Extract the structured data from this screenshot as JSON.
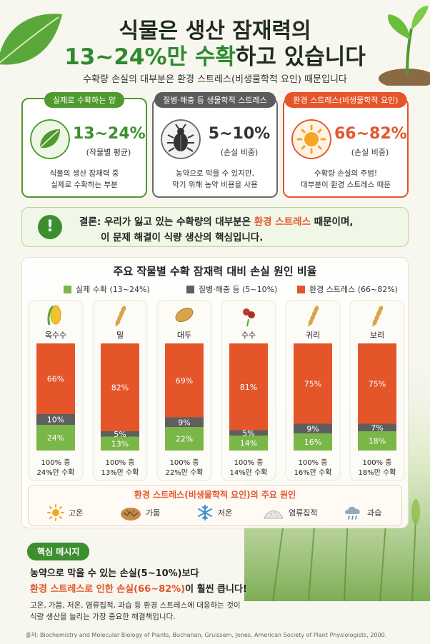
{
  "header": {
    "title_line1": "식물은 생산 잠재력의",
    "title_line2_highlight": "13~24%만 수확",
    "title_line2_rest": "하고 있습니다",
    "subtitle": "수확량 손실의 대부분은 환경 스트레스(비생물학적 요인) 때문입니다"
  },
  "cards": [
    {
      "tag": "실제로 수확하는 양",
      "value": "13~24%",
      "sub": "(작물별 평균)",
      "desc1": "식물의 생산 잠재력 중",
      "desc2": "실제로 수확하는 부분",
      "color": "#4f9a2e",
      "icon": "leaf-icon"
    },
    {
      "tag": "질병·해충 등 생물학적 스트레스",
      "value": "5~10%",
      "sub": "(손실 비중)",
      "desc1": "농약으로 막을 수 있지만,",
      "desc2": "막기 위해 농약 비용을 사용",
      "color": "#5b5b5b",
      "icon": "bug-icon"
    },
    {
      "tag": "환경 스트레스(비생물학적 요인)",
      "value": "66~82%",
      "sub": "(손실 비중)",
      "desc1": "수확량 손실의 주범!",
      "desc2": "대부분이 환경 스트레스 때문",
      "color": "#e4552a",
      "icon": "sun-icon"
    }
  ],
  "conclusion": {
    "prefix": "결론:",
    "l1_before": "우리가 잃고 있는 수확량의 대부분은 ",
    "l1_highlight": "환경 스트레스",
    "l1_after": " 때문이며,",
    "l2": "이 문제 해결이 식량 생산의 핵심입니다."
  },
  "chart_data": {
    "type": "bar",
    "stacked": true,
    "title": "주요 작물별 수확 잠재력 대비 손실 원인 비율",
    "categories": [
      "옥수수",
      "밀",
      "대두",
      "수수",
      "귀리",
      "보리"
    ],
    "series": [
      {
        "name": "실제 수확 (13~24%)",
        "values": [
          24,
          13,
          22,
          14,
          16,
          18
        ],
        "color": "#7ab648"
      },
      {
        "name": "질병·해충 등 (5~10%)",
        "values": [
          10,
          5,
          9,
          5,
          9,
          7
        ],
        "color": "#5f5f5f"
      },
      {
        "name": "환경 스트레스 (66~82%)",
        "values": [
          66,
          82,
          69,
          81,
          75,
          75
        ],
        "color": "#e4552a"
      }
    ],
    "captions_top": [
      "100% 중",
      "100% 중",
      "100% 중",
      "100% 중",
      "100% 중",
      "100% 중"
    ],
    "captions_bottom": [
      "24%만 수확",
      "13%만 수확",
      "22%만 수확",
      "14%만 수확",
      "16%만 수확",
      "18%만 수확"
    ],
    "ylim": [
      0,
      100
    ]
  },
  "causes": {
    "title": "환경 스트레스(비생물학적 요인)의 주요 원인",
    "items": [
      {
        "label": "고온",
        "icon": "sun-icon"
      },
      {
        "label": "가뭄",
        "icon": "cracked-soil-icon"
      },
      {
        "label": "저온",
        "icon": "snowflake-icon"
      },
      {
        "label": "염류집적",
        "icon": "salt-pile-icon"
      },
      {
        "label": "과습",
        "icon": "rain-cloud-icon"
      }
    ]
  },
  "message": {
    "tag": "핵심 메시지",
    "l1": "농약으로 막을 수 있는 손실(5~10%)보다",
    "l2_highlight": "환경 스트레스로 인한 손실(66~82%)",
    "l2_rest": "이 훨씬 큽니다!",
    "l3": "고온, 가뭄, 저온, 염류집적, 과습 등 환경 스트레스에 대응하는 것이",
    "l4": "식량 생산을 늘리는 가장 중요한 해결책입니다."
  },
  "source": "출처: Biochemistry and Molecular Biology of Plants, Buchanan, Gruissem, Jones, American Society of Plant Physiologists, 2000."
}
